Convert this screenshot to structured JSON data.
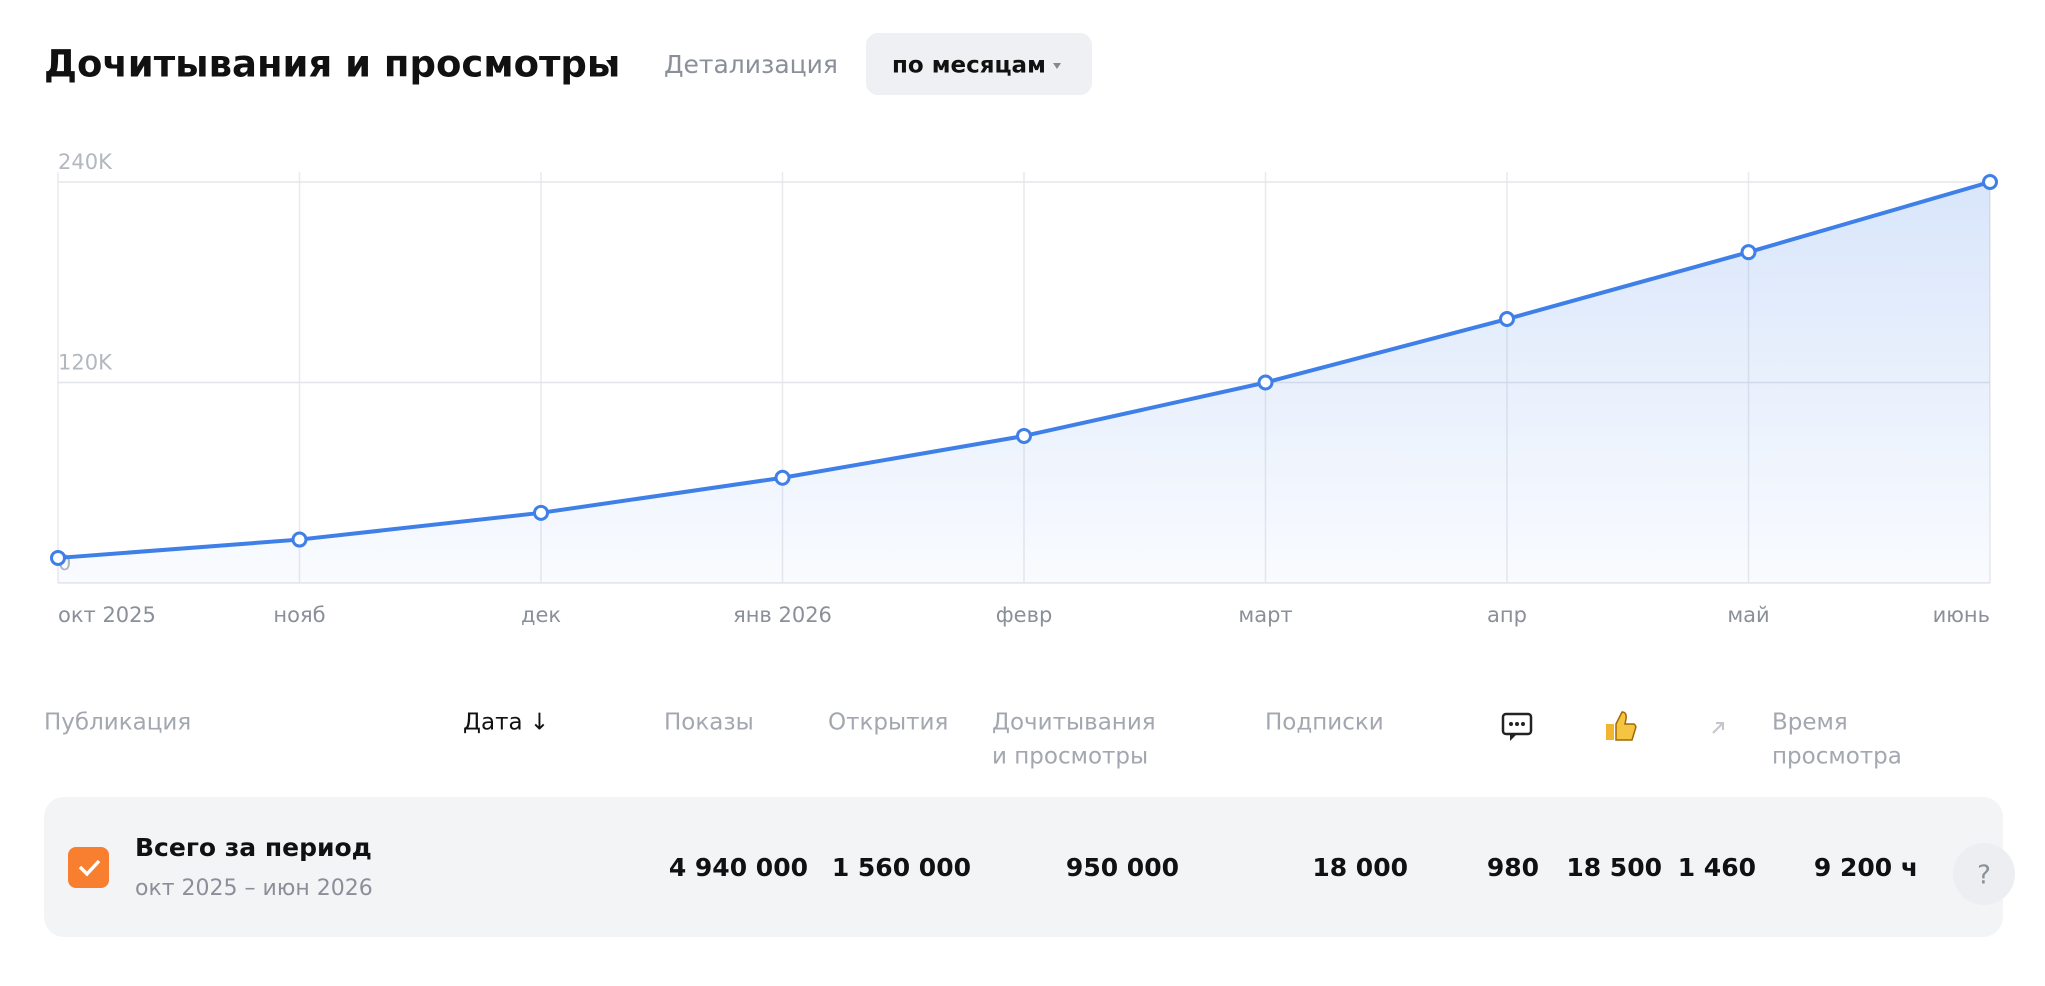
{
  "header": {
    "title": "Дочитывания и просмотры",
    "detail_label": "Детализация",
    "detail_value": "по месяцам"
  },
  "chart_data": {
    "type": "line",
    "categories": [
      "окт 2025",
      "нояб",
      "дек",
      "янв 2026",
      "февр",
      "март",
      "апр",
      "май",
      "июнь"
    ],
    "series": [
      {
        "name": "Дочитывания и просмотры",
        "color": "#3f7fe8",
        "values": [
          15000,
          26000,
          42000,
          63000,
          88000,
          120000,
          158000,
          198000,
          240000
        ]
      }
    ],
    "ylim": [
      0,
      240000
    ],
    "yticks": [
      {
        "value": 0,
        "label": "0"
      },
      {
        "value": 120000,
        "label": "120K"
      },
      {
        "value": 240000,
        "label": "240K"
      }
    ],
    "grid": true
  },
  "table": {
    "headers": [
      [
        "Публикация"
      ],
      [
        "Дата ↓"
      ],
      [
        "Показы"
      ],
      [
        "Открытия"
      ],
      [
        "Дочитывания",
        "и просмотры"
      ],
      [
        "Подписки"
      ],
      [
        "Время",
        "просмотра"
      ]
    ],
    "row": {
      "title": "Всего за период",
      "period": "окт 2025 – июн 2026",
      "cells": [
        "4 940 000",
        "1 560 000",
        "950 000",
        "18 000",
        "980",
        "18 500",
        "1 460",
        "9 200 ч"
      ]
    }
  },
  "help": "?"
}
